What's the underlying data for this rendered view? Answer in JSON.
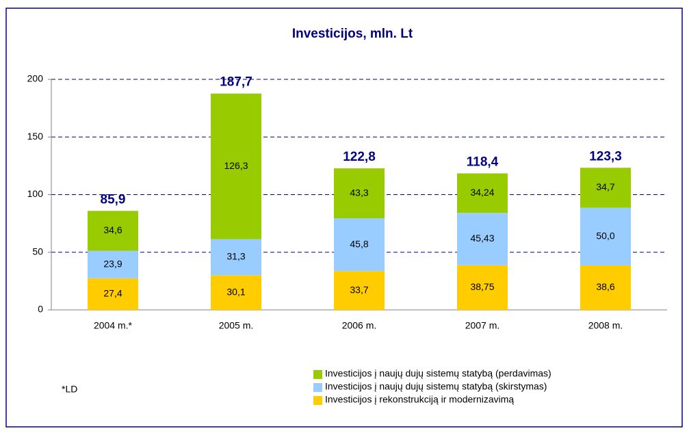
{
  "chart_data": {
    "type": "stacked_bar",
    "title": "Investicijos, mln. Lt",
    "categories": [
      "2004 m.*",
      "2005 m.",
      "2006 m.",
      "2007 m.",
      "2008 m."
    ],
    "series": [
      {
        "name": "Investicijos į rekonstrukciją ir modernizavimą",
        "color": "#ffcc00",
        "values": [
          27.4,
          30.1,
          33.7,
          38.75,
          38.6
        ],
        "value_labels": [
          "27,4",
          "30,1",
          "33,7",
          "38,75",
          "38,6"
        ]
      },
      {
        "name": "Investicijos į naujų dujų sistemų statybą (skirstymas)",
        "color": "#99ccff",
        "values": [
          23.9,
          31.3,
          45.8,
          45.43,
          50.0
        ],
        "value_labels": [
          "23,9",
          "31,3",
          "45,8",
          "45,43",
          "50,0"
        ]
      },
      {
        "name": "Investicijos į naujų dujų sistemų statybą (perdavimas)",
        "color": "#99cc00",
        "values": [
          34.6,
          126.3,
          43.3,
          34.24,
          34.7
        ],
        "value_labels": [
          "34,6",
          "126,3",
          "43,3",
          "34,24",
          "34,7"
        ]
      }
    ],
    "totals": {
      "values": [
        85.9,
        187.7,
        122.8,
        118.4,
        123.3
      ],
      "value_labels": [
        "85,9",
        "187,7",
        "122,8",
        "118,4",
        "123,3"
      ]
    },
    "footnote": "*LD",
    "ylim": [
      0,
      200
    ],
    "yticks": [
      0,
      50,
      100,
      150,
      200
    ],
    "grid": true
  }
}
